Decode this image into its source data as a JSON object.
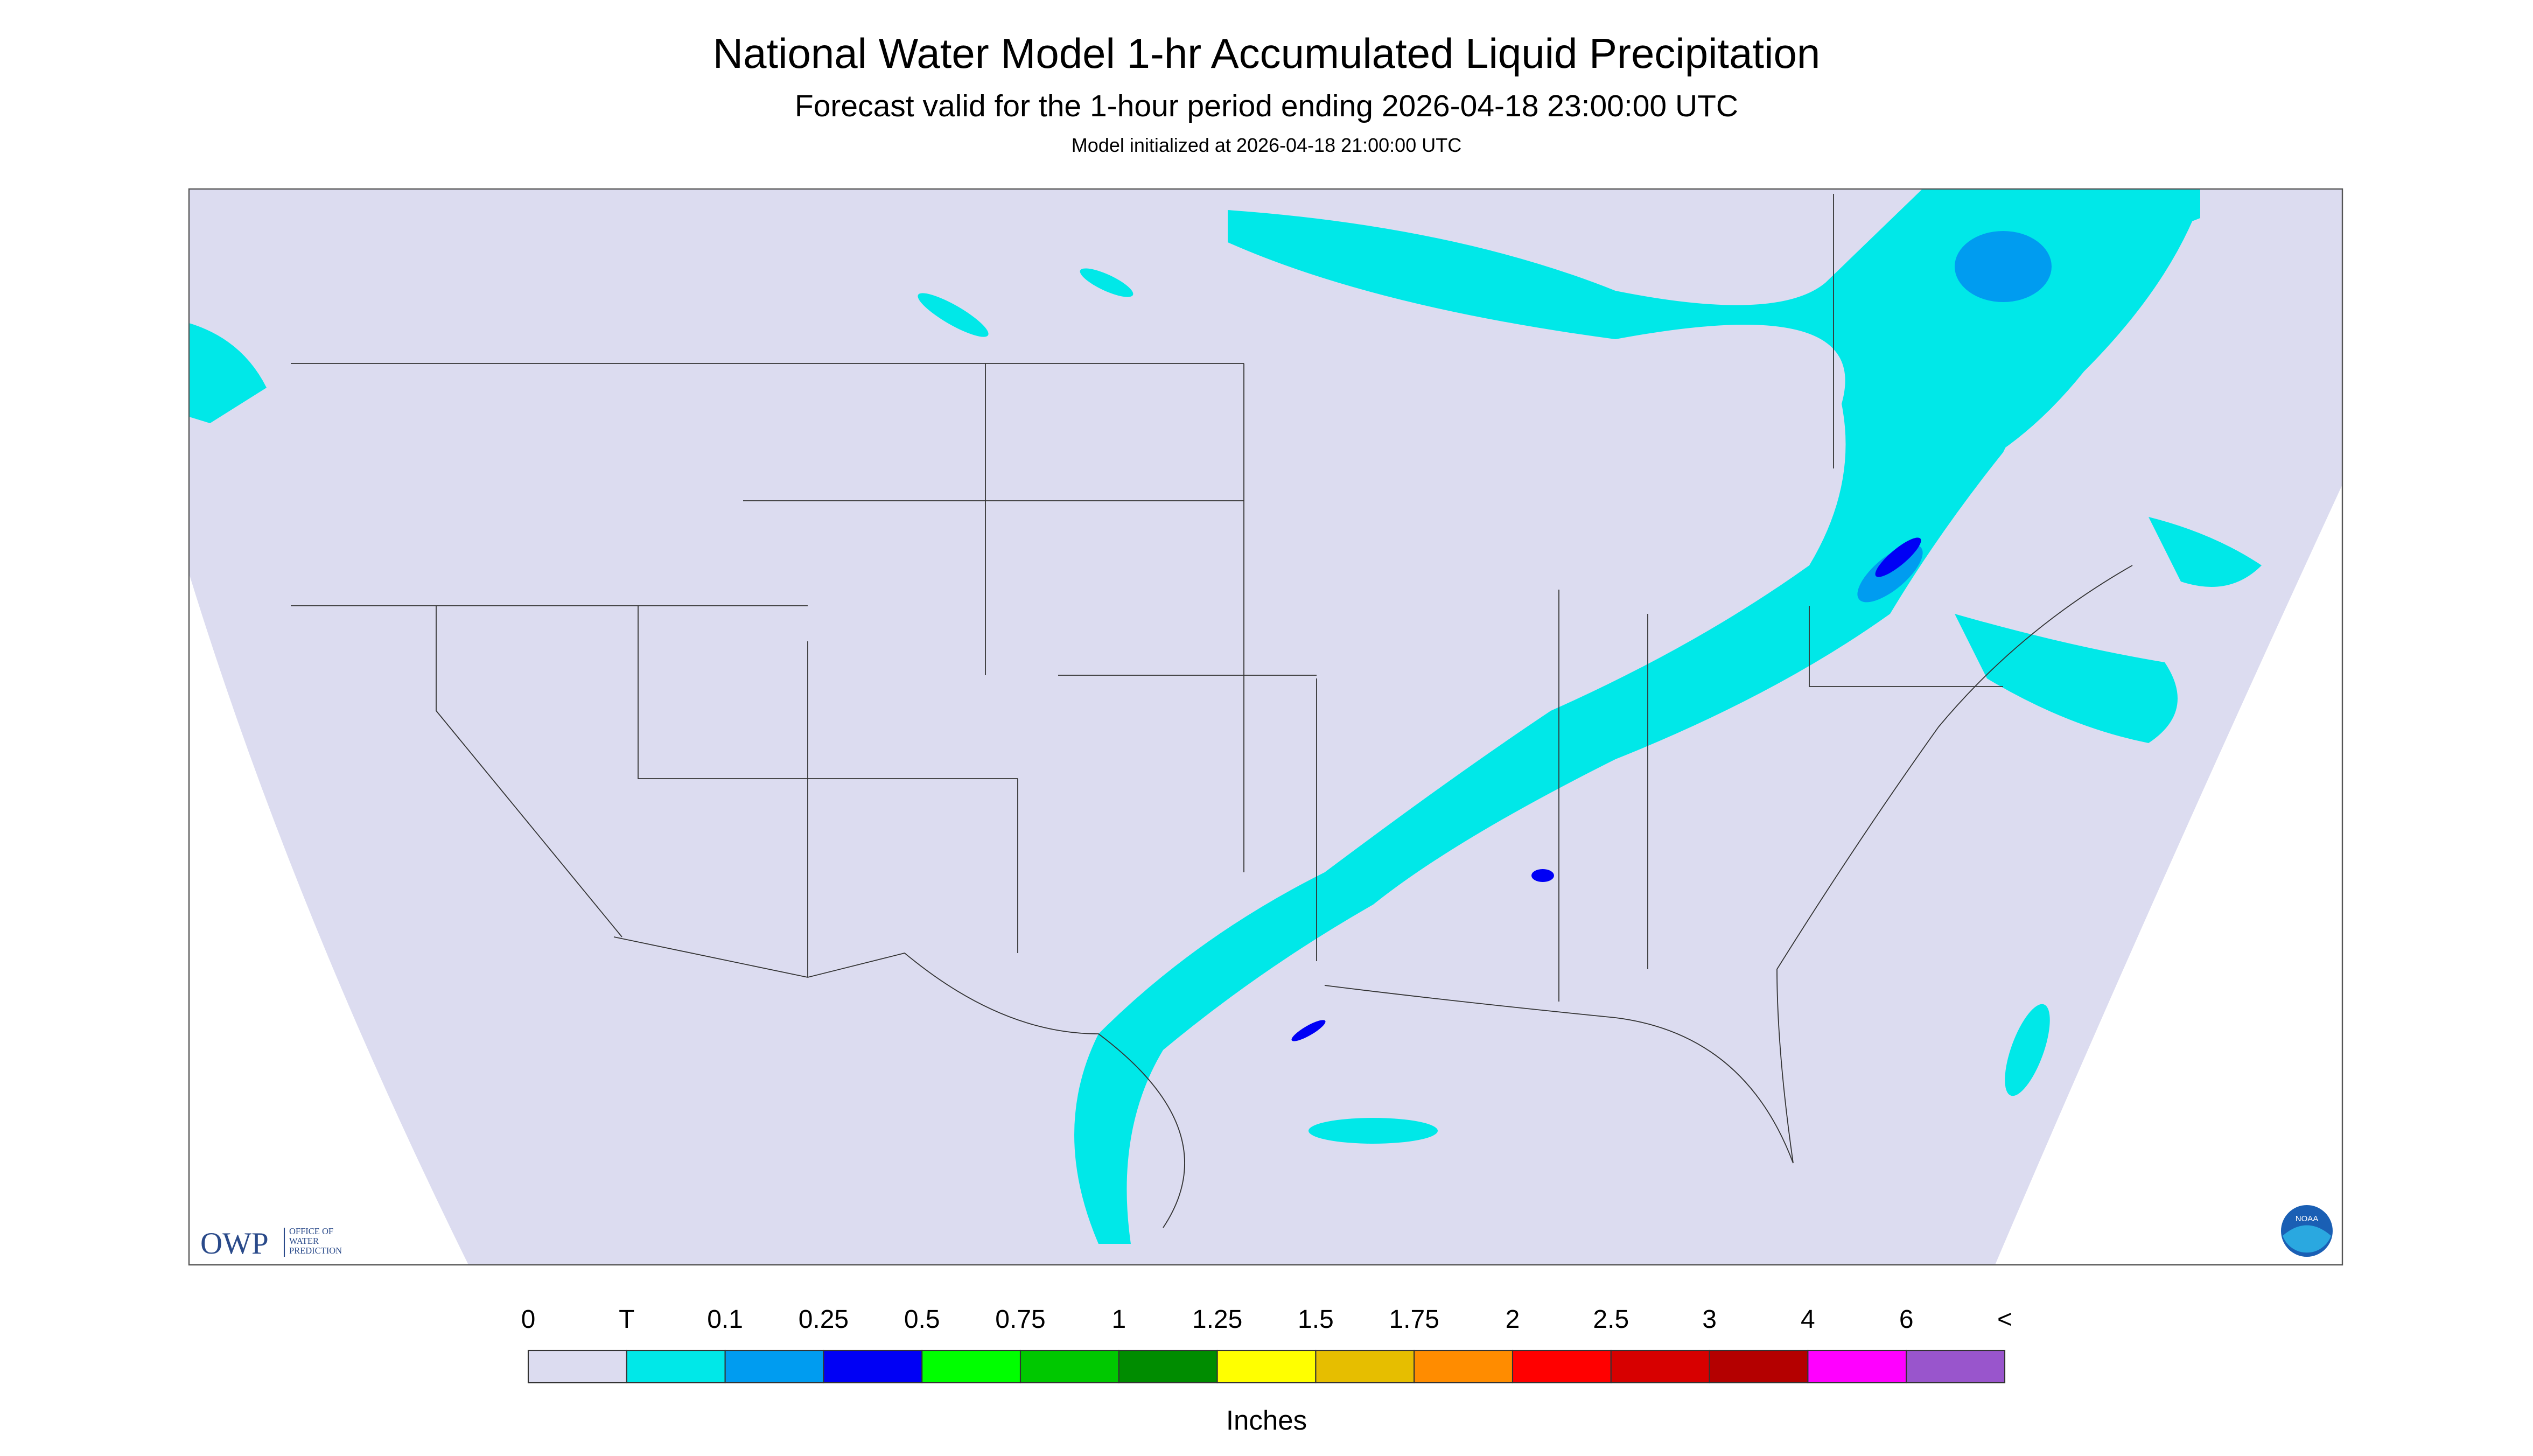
{
  "header": {
    "title": "National Water Model 1-hr Accumulated Liquid Precipitation",
    "subtitle": "Forecast valid for the 1-hour period ending 2026-04-18 23:00:00 UTC",
    "init": "Model initialized at 2026-04-18 21:00:00 UTC"
  },
  "legend": {
    "labels": [
      "0",
      "T",
      "0.1",
      "0.25",
      "0.5",
      "0.75",
      "1",
      "1.25",
      "1.5",
      "1.75",
      "2",
      "2.5",
      "3",
      "4",
      "6",
      "<"
    ],
    "colors": [
      "#dcdcf0",
      "#00e8e8",
      "#009cf0",
      "#0000f5",
      "#00ff00",
      "#00c800",
      "#008c00",
      "#ffff00",
      "#e6be00",
      "#ff8c00",
      "#ff0000",
      "#d70000",
      "#b40000",
      "#ff00ff",
      "#9955cc"
    ],
    "unit": "Inches"
  },
  "logo": {
    "owp": "OWP",
    "office": [
      "OFFICE OF",
      "WATER",
      "PREDICTION"
    ],
    "noaa": "NOAA"
  }
}
